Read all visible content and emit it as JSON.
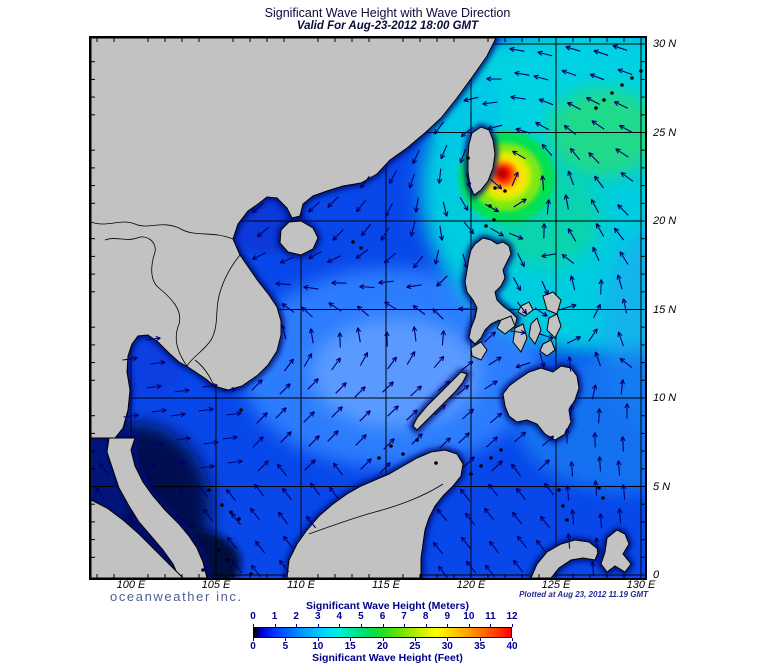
{
  "header": {
    "title": "Significant Wave Height with Wave Direction",
    "subtitle": "Valid For Aug-23-2012 18:00 GMT"
  },
  "footer": {
    "branding": "oceanweather inc.",
    "plotted": "Plotted at Aug 23, 2012 11.19 GMT"
  },
  "axes": {
    "lon_labels": [
      "100 E",
      "105 E",
      "110 E",
      "115 E",
      "120 E",
      "125 E",
      "130 E"
    ],
    "lat_labels": [
      "30 N",
      "25 N",
      "20 N",
      "15 N",
      "10 N",
      "5 N",
      "0"
    ]
  },
  "colorbar": {
    "meters_title": "Significant Wave Height (Meters)",
    "feet_title": "Significant Wave Height (Feet)",
    "meters_ticks": [
      "0",
      "1",
      "2",
      "3",
      "4",
      "5",
      "6",
      "7",
      "8",
      "9",
      "10",
      "11",
      "12"
    ],
    "feet_ticks": [
      "0",
      "5",
      "10",
      "15",
      "20",
      "25",
      "30",
      "35",
      "40"
    ],
    "gradient": [
      "#000000",
      "#0000cc",
      "#0033ff",
      "#0077ff",
      "#00aaff",
      "#00d4ff",
      "#00eedd",
      "#00e6a0",
      "#00dd66",
      "#22dd22",
      "#77e600",
      "#ccee00",
      "#ffff00",
      "#ffcc00",
      "#ff9900",
      "#ff6600",
      "#ff3300",
      "#ff0000"
    ]
  },
  "colors": {
    "land": "#c2c2c2",
    "coast": "#000000",
    "arrow": "#000069",
    "sea_base": "#0848ea",
    "grid": "#000000",
    "navy_text": "#00008c",
    "title_text": "#0b0b3b",
    "branding_text": "#4b5f92",
    "plotted_text": "#2a2a90"
  },
  "chart_data": {
    "type": "heatmap",
    "variable": "significant wave height",
    "overlay": "wave direction vectors",
    "valid_time": "Aug-23-2012 18:00 GMT",
    "plotted_time": "Aug 23, 2012 11.19 GMT",
    "region": {
      "lon_min_e": 97.6,
      "lon_max_e": 130,
      "lat_min_n": 0,
      "lat_max_n": 30.3
    },
    "grid_interval_deg": 5,
    "scale": {
      "meters": [
        0,
        12
      ],
      "feet": [
        0,
        40
      ]
    },
    "features": [
      {
        "area": "typhoon core southeast of Taiwan",
        "lon_e": 122.3,
        "lat_n": 22.5,
        "hs_m": "10-12"
      },
      {
        "area": "ring around typhoon core, NW Philippine Sea",
        "hs_m": "4-8"
      },
      {
        "area": "East China Sea and Philippine Sea",
        "hs_m": "3-5"
      },
      {
        "area": "South China Sea basin",
        "hs_m": "1-2.5"
      },
      {
        "area": "Gulf of Thailand",
        "hs_m": "1-1.5"
      },
      {
        "area": "Malacca Strait and NE Sumatra coast",
        "hs_m": "0-0.5"
      }
    ],
    "flow": {
      "typhoon_center_svg": [
        414,
        134
      ],
      "gyre_center_svg": [
        474,
        250
      ],
      "notes": "cyclonic counterclockwise rotation around typhoon near Taiwan; westward swell in East China Sea; northeastward swell in southern South China Sea; eastward in Gulf of Thailand; northwestward in Celebes Sea"
    }
  }
}
